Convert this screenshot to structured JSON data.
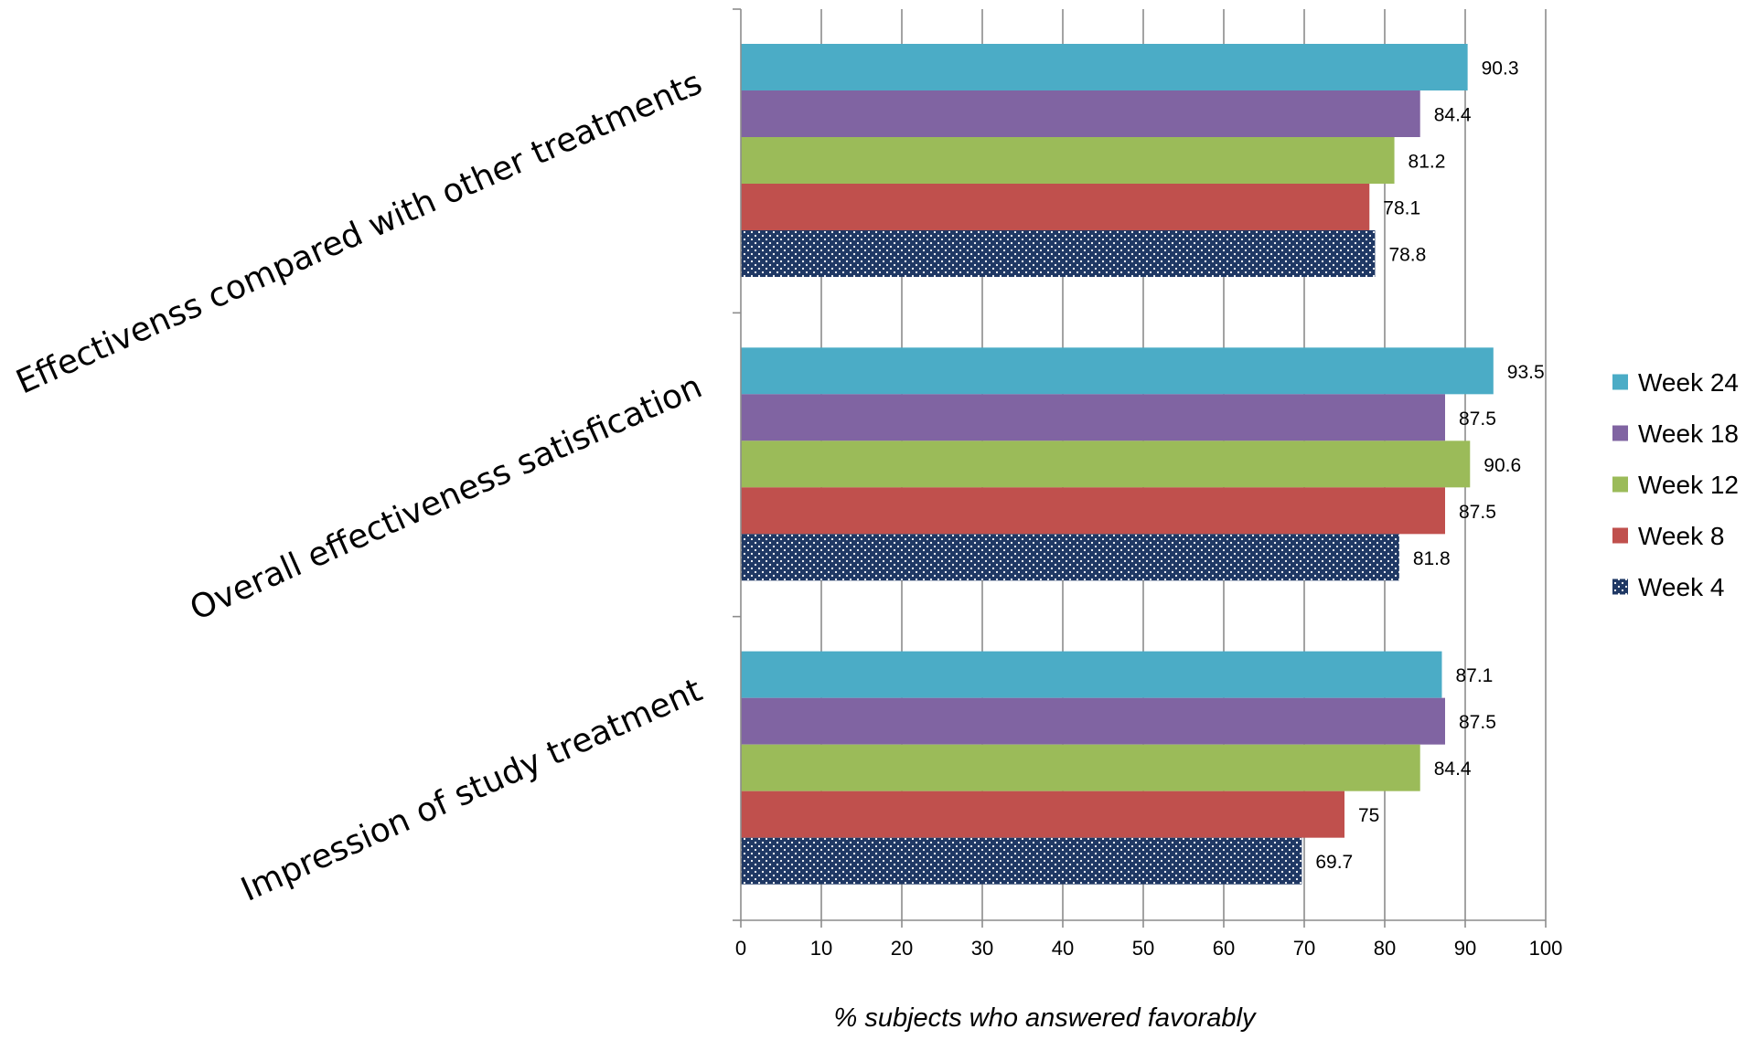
{
  "chart_data": {
    "type": "bar",
    "orientation": "horizontal",
    "categories": [
      "Effectivenss compared with other treatments",
      "Overall effectiveness satisfication",
      "Impression of study treatment"
    ],
    "series": [
      {
        "name": "Week 24",
        "color": "#4BACC6",
        "pattern": "solid",
        "values": [
          90.3,
          93.5,
          87.1
        ]
      },
      {
        "name": "Week 18",
        "color": "#8064A2",
        "pattern": "solid",
        "values": [
          84.4,
          87.5,
          87.5
        ]
      },
      {
        "name": "Week 12",
        "color": "#9BBB59",
        "pattern": "solid",
        "values": [
          81.2,
          90.6,
          84.4
        ]
      },
      {
        "name": "Week 8",
        "color": "#C0504D",
        "pattern": "solid",
        "values": [
          78.1,
          87.5,
          75
        ]
      },
      {
        "name": "Week 4",
        "color": "#1F3864",
        "pattern": "dotted",
        "values": [
          78.8,
          81.8,
          69.7
        ]
      }
    ],
    "xlabel": "% subjects who answered favorably",
    "xlim": [
      0,
      100
    ],
    "xticks": [
      0,
      10,
      20,
      30,
      40,
      50,
      60,
      70,
      80,
      90,
      100
    ],
    "grid": "vertical major",
    "legend_position": "right",
    "data_labels": true
  }
}
